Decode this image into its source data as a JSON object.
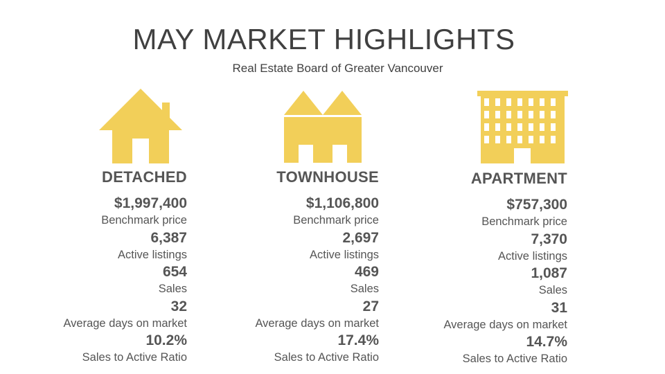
{
  "title": "MAY MARKET HIGHLIGHTS",
  "subtitle": "Real Estate Board of Greater Vancouver",
  "colors": {
    "icon_fill": "#F2CF59",
    "text": "#555555"
  },
  "columns": [
    {
      "label": "DETACHED",
      "icon": "house-icon",
      "stats": [
        {
          "value": "$1,997,400",
          "caption": "Benchmark price"
        },
        {
          "value": "6,387",
          "caption": "Active listings"
        },
        {
          "value": "654",
          "caption": "Sales"
        },
        {
          "value": "32",
          "caption": "Average days on market"
        },
        {
          "value": "10.2%",
          "caption": "Sales to Active Ratio"
        }
      ]
    },
    {
      "label": "TOWNHOUSE",
      "icon": "townhouse-icon",
      "stats": [
        {
          "value": "$1,106,800",
          "caption": "Benchmark price"
        },
        {
          "value": "2,697",
          "caption": "Active listings"
        },
        {
          "value": "469",
          "caption": "Sales"
        },
        {
          "value": "27",
          "caption": "Average days on market"
        },
        {
          "value": "17.4%",
          "caption": "Sales to Active Ratio"
        }
      ]
    },
    {
      "label": "APARTMENT",
      "icon": "apartment-building-icon",
      "stats": [
        {
          "value": "$757,300",
          "caption": "Benchmark price"
        },
        {
          "value": "7,370",
          "caption": "Active listings"
        },
        {
          "value": "1,087",
          "caption": "Sales"
        },
        {
          "value": "31",
          "caption": "Average days on market"
        },
        {
          "value": "14.7%",
          "caption": "Sales to Active Ratio"
        }
      ]
    }
  ]
}
